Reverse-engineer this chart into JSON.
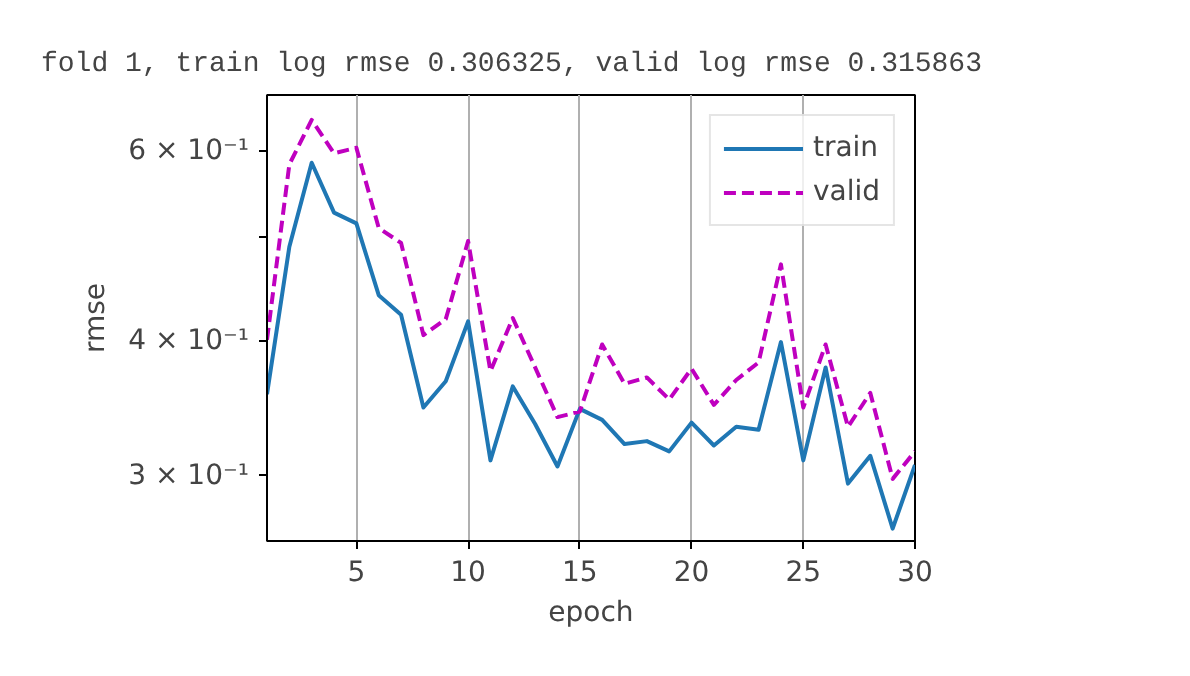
{
  "chart_data": {
    "type": "line",
    "title": "fold 1, train log rmse 0.306325, valid log rmse 0.315863",
    "xlabel": "epoch",
    "ylabel": "rmse",
    "x": [
      1,
      2,
      3,
      4,
      5,
      6,
      7,
      8,
      9,
      10,
      11,
      12,
      13,
      14,
      15,
      16,
      17,
      18,
      19,
      20,
      21,
      22,
      23,
      24,
      25,
      26,
      27,
      28,
      29,
      30
    ],
    "series": [
      {
        "name": "train",
        "color": "#1f77b4",
        "line_style": "solid",
        "values": [
          0.357,
          0.489,
          0.585,
          0.526,
          0.514,
          0.441,
          0.423,
          0.347,
          0.367,
          0.417,
          0.31,
          0.363,
          0.335,
          0.306,
          0.346,
          0.338,
          0.321,
          0.323,
          0.316,
          0.336,
          0.32,
          0.333,
          0.331,
          0.399,
          0.31,
          0.378,
          0.295,
          0.313,
          0.268,
          0.307
        ]
      },
      {
        "name": "valid",
        "color": "#bf00bf",
        "line_style": "dashed",
        "values": [
          0.401,
          0.583,
          0.641,
          0.597,
          0.604,
          0.509,
          0.493,
          0.405,
          0.419,
          0.495,
          0.375,
          0.42,
          0.378,
          0.34,
          0.344,
          0.397,
          0.365,
          0.37,
          0.353,
          0.377,
          0.349,
          0.368,
          0.382,
          0.471,
          0.347,
          0.397,
          0.333,
          0.358,
          0.298,
          0.316
        ]
      }
    ],
    "xlim": [
      1,
      30
    ],
    "xticks": [
      5,
      10,
      15,
      20,
      25,
      30
    ],
    "ylim": [
      0.261,
      0.676
    ],
    "yticks": [
      {
        "value": 0.3,
        "label": "3 × 10⁻¹"
      },
      {
        "value": 0.4,
        "label": "4 × 10⁻¹"
      },
      {
        "value": 0.5,
        "label": null
      },
      {
        "value": 0.6,
        "label": "6 × 10⁻¹"
      }
    ],
    "log": "y",
    "grid": "x",
    "legend": "top right",
    "marker": "none"
  }
}
